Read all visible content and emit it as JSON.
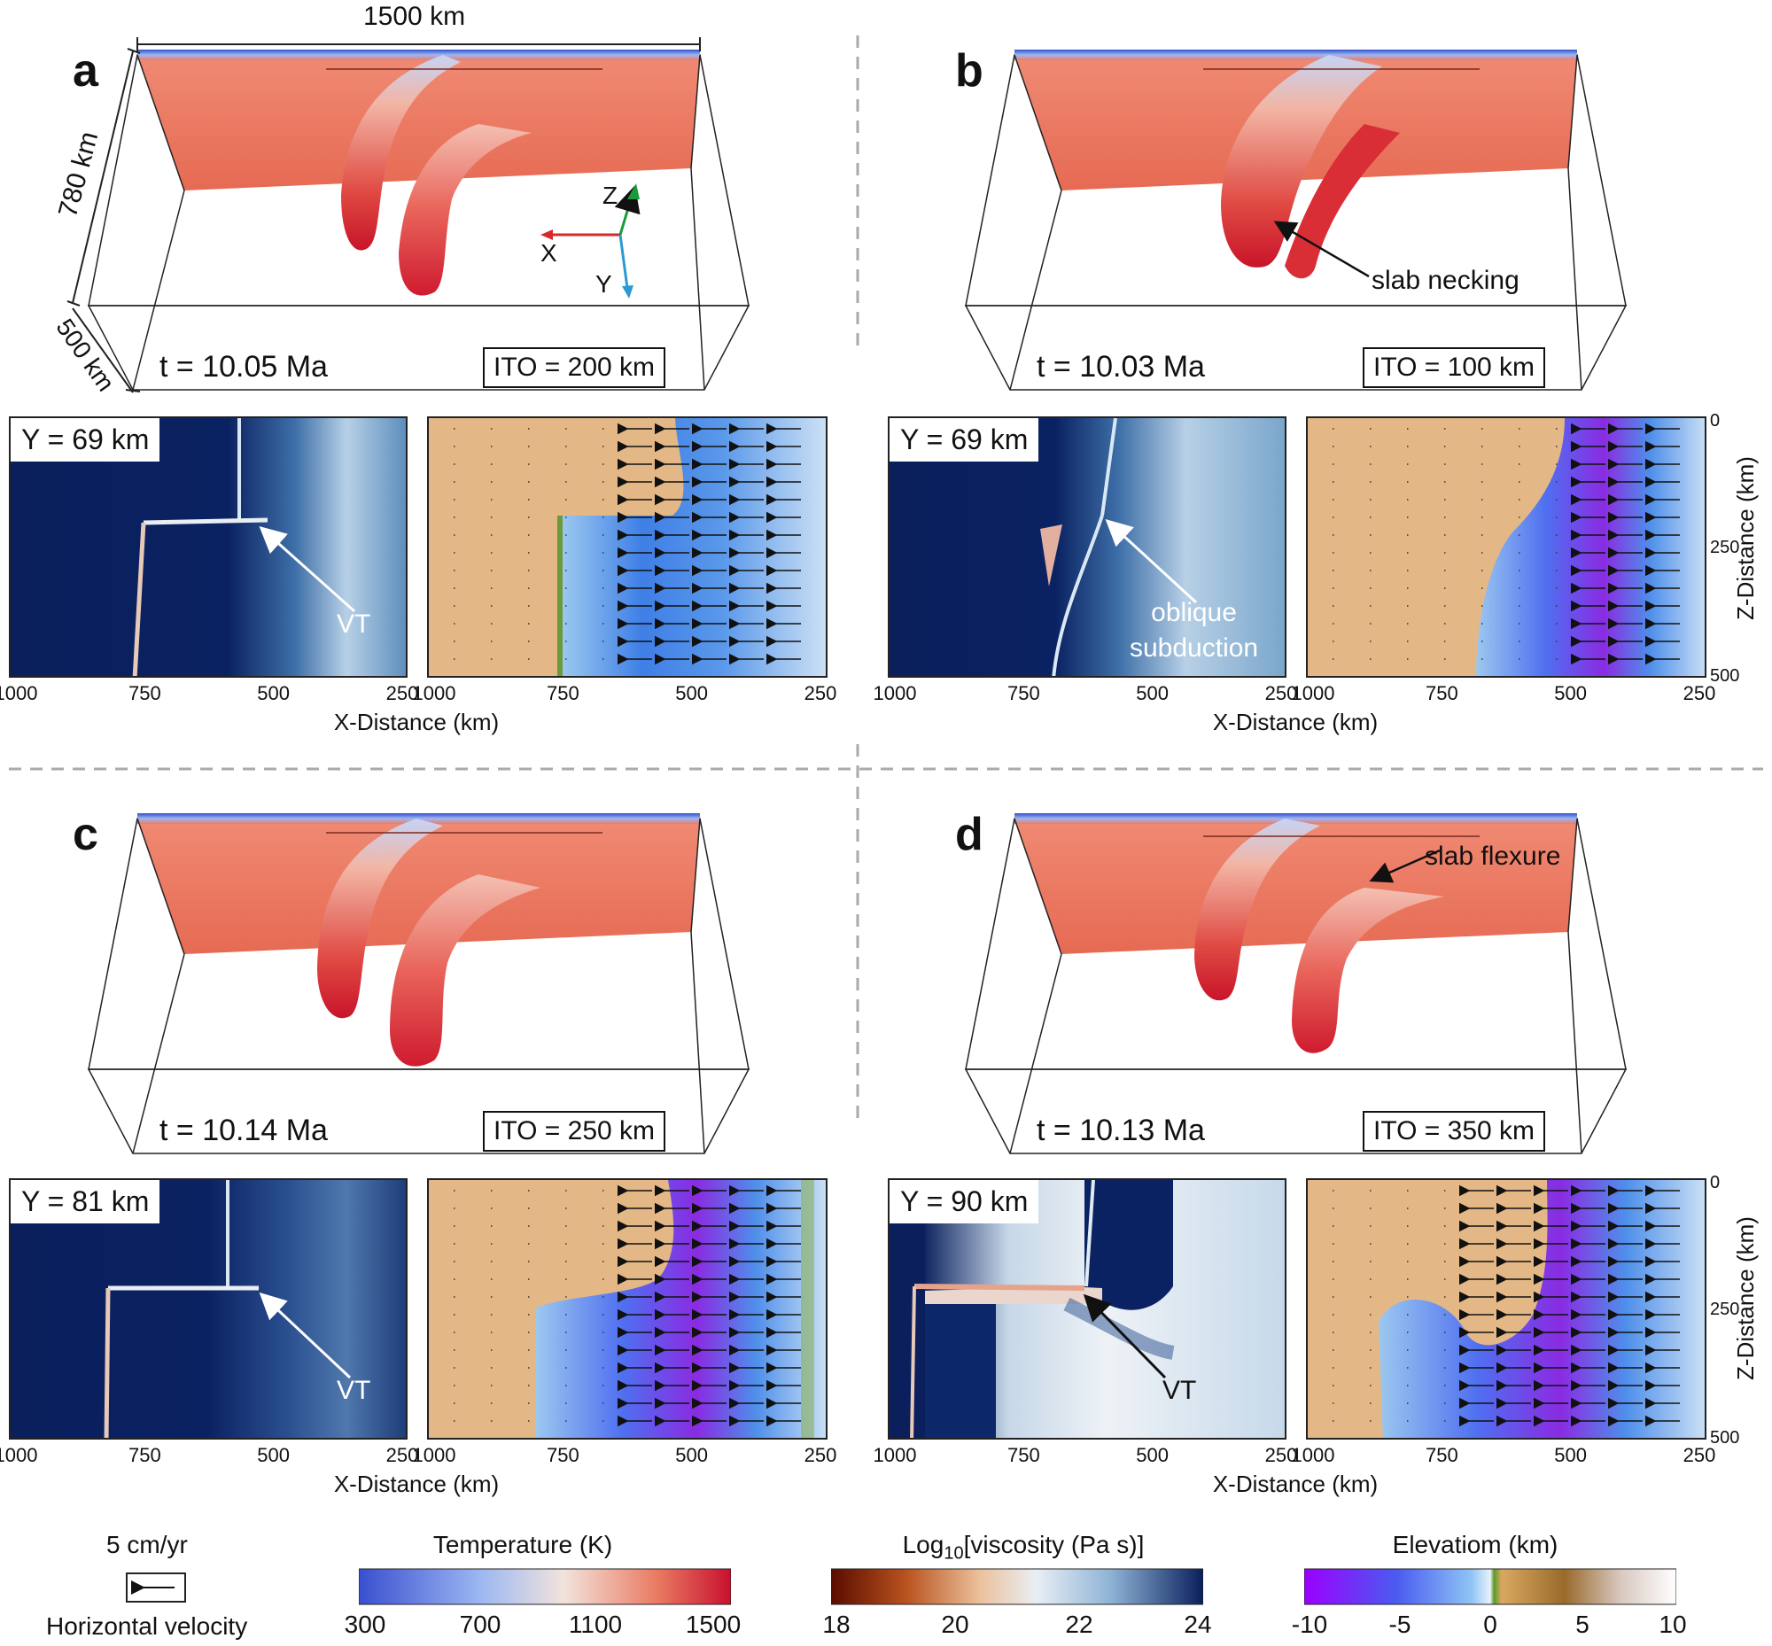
{
  "dims": {
    "width_label": "1500 km",
    "depth_label": "780 km",
    "length_label": "500 km"
  },
  "axes_triad": {
    "z": "Z",
    "x": "X",
    "y": "Y"
  },
  "panels": [
    {
      "letter": "a",
      "time": "t = 10.05 Ma",
      "ito": "ITO = 200 km",
      "slice": "Y = 69 km",
      "annot": "VT"
    },
    {
      "letter": "b",
      "time": "t = 10.03 Ma",
      "ito": "ITO = 100 km",
      "slice": "Y = 69 km",
      "annot": "oblique\nsubduction",
      "annot3d": "slab necking"
    },
    {
      "letter": "c",
      "time": "t = 10.14 Ma",
      "ito": "ITO = 250 km",
      "slice": "Y = 81 km",
      "annot": "VT"
    },
    {
      "letter": "d",
      "time": "t = 10.13 Ma",
      "ito": "ITO = 350 km",
      "slice": "Y = 90 km",
      "annot": "VT",
      "annot3d": "slab flexure"
    }
  ],
  "x_ticks": [
    "1000",
    "750",
    "500",
    "250"
  ],
  "x_title": "X-Distance (km)",
  "z_ticks": [
    "0",
    "250",
    "500"
  ],
  "z_title": "Z-Distance (km)",
  "legend": {
    "velocity_scale": "5 cm/yr",
    "velocity_title": "Horizontal velocity",
    "temperature": {
      "title": "Temperature (K)",
      "ticks": [
        "300",
        "700",
        "1100",
        "1500"
      ]
    },
    "viscosity": {
      "title_pre": "Log",
      "title_sub": "10",
      "title_post": "[viscosity (Pa s)]",
      "ticks": [
        "18",
        "20",
        "22",
        "24"
      ]
    },
    "elevation": {
      "title": "Elevatiom (km)",
      "ticks": [
        "-10",
        "-5",
        "0",
        "5",
        "10"
      ]
    }
  },
  "colors": {
    "slab_red": "#d9252e",
    "mantle_salmon": "#ec7d66",
    "cold_blue": "#3d5fd6",
    "deep_navy": "#0a1f5c",
    "elev_tan": "#e3b886",
    "elev_blue": "#3f7fe6",
    "elev_purple": "#8a2be2"
  }
}
